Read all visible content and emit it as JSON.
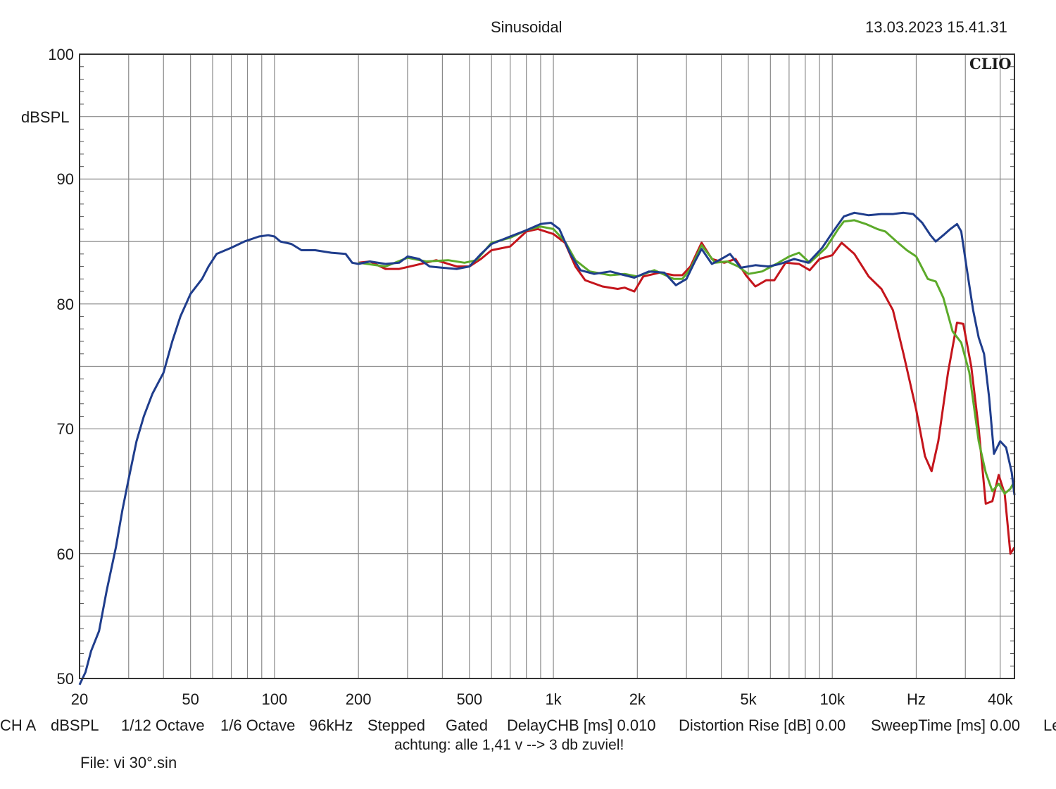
{
  "header": {
    "title": "Sinusoidal",
    "timestamp": "13.03.2023 15.41.31",
    "brand": "CLIO"
  },
  "footer": {
    "settings": [
      "CH A",
      "dBSPL",
      "1/12 Octave",
      "1/6 Octave",
      "96kHz",
      "Stepped",
      "Gated",
      "DelayCHB [ms] 0.010",
      "Distortion Rise [dB] 0.00",
      "SweepTime [ms] 0.00",
      "Le"
    ],
    "note": "achtung: alle 1,41 v --> 3 db zuviel!",
    "file": "File: vi 30°.sin"
  },
  "chart_data": {
    "type": "line",
    "title": "Sinusoidal",
    "ylabel": "dBSPL",
    "xlabel": "Hz",
    "xscale": "log",
    "xlim": [
      20,
      45000
    ],
    "ylim": [
      50,
      100
    ],
    "grid": true,
    "y_ticks": [
      {
        "value": 100,
        "label": "100"
      },
      {
        "value": 90,
        "label": "90"
      },
      {
        "value": 80,
        "label": "80"
      },
      {
        "value": 70,
        "label": "70"
      },
      {
        "value": 60,
        "label": "60"
      },
      {
        "value": 50,
        "label": "50"
      }
    ],
    "x_ticks": [
      {
        "value": 20,
        "label": "20"
      },
      {
        "value": 50,
        "label": "50"
      },
      {
        "value": 100,
        "label": "100"
      },
      {
        "value": 200,
        "label": "200"
      },
      {
        "value": 500,
        "label": "500"
      },
      {
        "value": 1000,
        "label": "1k"
      },
      {
        "value": 2000,
        "label": "2k"
      },
      {
        "value": 5000,
        "label": "5k"
      },
      {
        "value": 10000,
        "label": "10k"
      },
      {
        "value": 20000,
        "label": "Hz"
      },
      {
        "value": 40000,
        "label": "40k"
      }
    ],
    "series": [
      {
        "color": "#c4151c",
        "points": [
          [
            200,
            83.3
          ],
          [
            220,
            83.4
          ],
          [
            250,
            82.8
          ],
          [
            280,
            82.8
          ],
          [
            320,
            83.1
          ],
          [
            380,
            83.5
          ],
          [
            450,
            83.0
          ],
          [
            500,
            83.0
          ],
          [
            550,
            83.6
          ],
          [
            600,
            84.3
          ],
          [
            700,
            84.6
          ],
          [
            800,
            85.8
          ],
          [
            880,
            86.0
          ],
          [
            1000,
            85.6
          ],
          [
            1100,
            84.9
          ],
          [
            1200,
            83.0
          ],
          [
            1300,
            81.9
          ],
          [
            1500,
            81.4
          ],
          [
            1700,
            81.2
          ],
          [
            1800,
            81.3
          ],
          [
            1950,
            81.0
          ],
          [
            2100,
            82.2
          ],
          [
            2400,
            82.5
          ],
          [
            2700,
            82.3
          ],
          [
            2900,
            82.3
          ],
          [
            3100,
            83.0
          ],
          [
            3400,
            84.9
          ],
          [
            3700,
            83.6
          ],
          [
            4100,
            83.3
          ],
          [
            4500,
            83.6
          ],
          [
            4900,
            82.3
          ],
          [
            5300,
            81.4
          ],
          [
            5800,
            81.9
          ],
          [
            6200,
            81.9
          ],
          [
            6800,
            83.3
          ],
          [
            7600,
            83.2
          ],
          [
            8300,
            82.7
          ],
          [
            9000,
            83.6
          ],
          [
            10000,
            83.9
          ],
          [
            10800,
            84.9
          ],
          [
            12000,
            84.0
          ],
          [
            13500,
            82.2
          ],
          [
            15000,
            81.2
          ],
          [
            16500,
            79.5
          ],
          [
            18000,
            76.0
          ],
          [
            20000,
            71.5
          ],
          [
            21500,
            67.8
          ],
          [
            22700,
            66.6
          ],
          [
            24000,
            69.0
          ],
          [
            26000,
            74.5
          ],
          [
            28000,
            78.5
          ],
          [
            29500,
            78.4
          ],
          [
            31500,
            75.0
          ],
          [
            33500,
            70.0
          ],
          [
            35500,
            64.0
          ],
          [
            37500,
            64.2
          ],
          [
            39500,
            66.3
          ],
          [
            41500,
            64.8
          ],
          [
            43500,
            60.0
          ],
          [
            45000,
            60.5
          ]
        ]
      },
      {
        "color": "#5caa2a",
        "points": [
          [
            200,
            83.3
          ],
          [
            250,
            83.0
          ],
          [
            300,
            83.7
          ],
          [
            350,
            83.4
          ],
          [
            420,
            83.5
          ],
          [
            480,
            83.3
          ],
          [
            530,
            83.5
          ],
          [
            600,
            84.9
          ],
          [
            700,
            85.3
          ],
          [
            800,
            85.9
          ],
          [
            900,
            86.2
          ],
          [
            1000,
            86.0
          ],
          [
            1100,
            85.0
          ],
          [
            1200,
            83.5
          ],
          [
            1350,
            82.6
          ],
          [
            1600,
            82.3
          ],
          [
            1800,
            82.4
          ],
          [
            2000,
            82.2
          ],
          [
            2300,
            82.7
          ],
          [
            2700,
            82.0
          ],
          [
            2900,
            82.0
          ],
          [
            3100,
            82.8
          ],
          [
            3400,
            84.7
          ],
          [
            3800,
            83.3
          ],
          [
            4200,
            83.4
          ],
          [
            4600,
            83.0
          ],
          [
            5000,
            82.4
          ],
          [
            5600,
            82.6
          ],
          [
            6300,
            83.2
          ],
          [
            7000,
            83.8
          ],
          [
            7600,
            84.1
          ],
          [
            8300,
            83.3
          ],
          [
            9500,
            84.5
          ],
          [
            10500,
            86.0
          ],
          [
            11000,
            86.6
          ],
          [
            12000,
            86.7
          ],
          [
            13200,
            86.4
          ],
          [
            14500,
            86.0
          ],
          [
            15500,
            85.8
          ],
          [
            17000,
            85.0
          ],
          [
            18500,
            84.3
          ],
          [
            20000,
            83.8
          ],
          [
            22000,
            82.0
          ],
          [
            23500,
            81.8
          ],
          [
            25000,
            80.5
          ],
          [
            27000,
            77.8
          ],
          [
            29000,
            76.9
          ],
          [
            31000,
            74.5
          ],
          [
            33500,
            69.0
          ],
          [
            35500,
            66.5
          ],
          [
            37500,
            65.0
          ],
          [
            39500,
            65.6
          ],
          [
            41500,
            64.8
          ],
          [
            43500,
            65.2
          ],
          [
            45000,
            65.8
          ]
        ]
      },
      {
        "color": "#1f3d8c",
        "points": [
          [
            20,
            49.5
          ],
          [
            21,
            50.5
          ],
          [
            22,
            52.2
          ],
          [
            23.5,
            53.8
          ],
          [
            25,
            57.0
          ],
          [
            27,
            60.5
          ],
          [
            28.5,
            63.5
          ],
          [
            30,
            66.0
          ],
          [
            32,
            69.0
          ],
          [
            34,
            71.0
          ],
          [
            36.5,
            72.8
          ],
          [
            40,
            74.5
          ],
          [
            43,
            77.0
          ],
          [
            46,
            79.0
          ],
          [
            50,
            80.8
          ],
          [
            55,
            82.0
          ],
          [
            58,
            83.0
          ],
          [
            62,
            84.0
          ],
          [
            70,
            84.5
          ],
          [
            78,
            85.0
          ],
          [
            88,
            85.4
          ],
          [
            95,
            85.5
          ],
          [
            100,
            85.4
          ],
          [
            105,
            85.0
          ],
          [
            115,
            84.8
          ],
          [
            125,
            84.3
          ],
          [
            140,
            84.3
          ],
          [
            160,
            84.1
          ],
          [
            180,
            84.0
          ],
          [
            190,
            83.3
          ],
          [
            200,
            83.2
          ],
          [
            220,
            83.4
          ],
          [
            250,
            83.2
          ],
          [
            280,
            83.3
          ],
          [
            300,
            83.8
          ],
          [
            330,
            83.6
          ],
          [
            360,
            83.0
          ],
          [
            400,
            82.9
          ],
          [
            450,
            82.8
          ],
          [
            500,
            83.0
          ],
          [
            550,
            84.0
          ],
          [
            600,
            84.8
          ],
          [
            700,
            85.4
          ],
          [
            800,
            85.9
          ],
          [
            900,
            86.4
          ],
          [
            980,
            86.5
          ],
          [
            1050,
            86.0
          ],
          [
            1150,
            84.0
          ],
          [
            1250,
            82.7
          ],
          [
            1400,
            82.4
          ],
          [
            1600,
            82.6
          ],
          [
            1800,
            82.3
          ],
          [
            1950,
            82.1
          ],
          [
            2200,
            82.6
          ],
          [
            2500,
            82.5
          ],
          [
            2750,
            81.5
          ],
          [
            3000,
            82.0
          ],
          [
            3200,
            83.3
          ],
          [
            3400,
            84.4
          ],
          [
            3700,
            83.2
          ],
          [
            4000,
            83.6
          ],
          [
            4300,
            84.0
          ],
          [
            4700,
            82.9
          ],
          [
            5300,
            83.1
          ],
          [
            5900,
            83.0
          ],
          [
            6500,
            83.2
          ],
          [
            7300,
            83.6
          ],
          [
            8200,
            83.3
          ],
          [
            9200,
            84.5
          ],
          [
            10000,
            85.7
          ],
          [
            11000,
            87.0
          ],
          [
            12000,
            87.3
          ],
          [
            13500,
            87.1
          ],
          [
            15000,
            87.2
          ],
          [
            16500,
            87.2
          ],
          [
            18000,
            87.3
          ],
          [
            19500,
            87.2
          ],
          [
            21000,
            86.5
          ],
          [
            22500,
            85.5
          ],
          [
            23500,
            85.0
          ],
          [
            25000,
            85.5
          ],
          [
            26500,
            86.0
          ],
          [
            28000,
            86.4
          ],
          [
            29000,
            85.8
          ],
          [
            30500,
            82.5
          ],
          [
            32000,
            79.5
          ],
          [
            33500,
            77.3
          ],
          [
            35000,
            76.0
          ],
          [
            36500,
            72.5
          ],
          [
            38000,
            68.0
          ],
          [
            40000,
            69.0
          ],
          [
            42000,
            68.5
          ],
          [
            44000,
            66.5
          ],
          [
            45000,
            64.7
          ]
        ]
      }
    ]
  }
}
